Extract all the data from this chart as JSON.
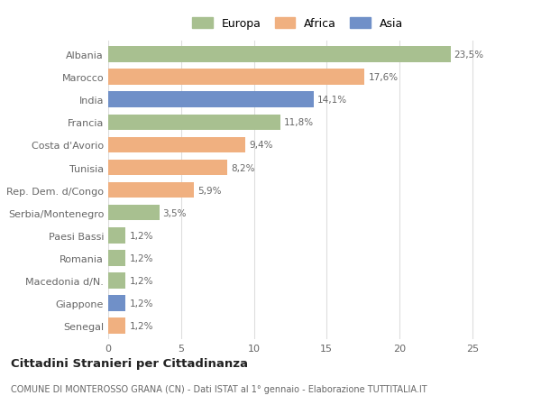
{
  "countries": [
    "Albania",
    "Marocco",
    "India",
    "Francia",
    "Costa d'Avorio",
    "Tunisia",
    "Rep. Dem. d/Congo",
    "Serbia/Montenegro",
    "Paesi Bassi",
    "Romania",
    "Macedonia d/N.",
    "Giappone",
    "Senegal"
  ],
  "values": [
    23.5,
    17.6,
    14.1,
    11.8,
    9.4,
    8.2,
    5.9,
    3.5,
    1.2,
    1.2,
    1.2,
    1.2,
    1.2
  ],
  "labels": [
    "23,5%",
    "17,6%",
    "14,1%",
    "11,8%",
    "9,4%",
    "8,2%",
    "5,9%",
    "3,5%",
    "1,2%",
    "1,2%",
    "1,2%",
    "1,2%",
    "1,2%"
  ],
  "continents": [
    "Europa",
    "Africa",
    "Asia",
    "Europa",
    "Africa",
    "Africa",
    "Africa",
    "Europa",
    "Europa",
    "Europa",
    "Europa",
    "Asia",
    "Africa"
  ],
  "colors": {
    "Europa": "#a8c090",
    "Africa": "#f0b080",
    "Asia": "#7090c8"
  },
  "legend_labels": [
    "Europa",
    "Africa",
    "Asia"
  ],
  "title": "Cittadini Stranieri per Cittadinanza",
  "subtitle": "COMUNE DI MONTEROSSO GRANA (CN) - Dati ISTAT al 1° gennaio - Elaborazione TUTTITALIA.IT",
  "xlim": [
    0,
    26
  ],
  "xticks": [
    0,
    5,
    10,
    15,
    20,
    25
  ],
  "background_color": "#ffffff",
  "grid_color": "#dddddd"
}
